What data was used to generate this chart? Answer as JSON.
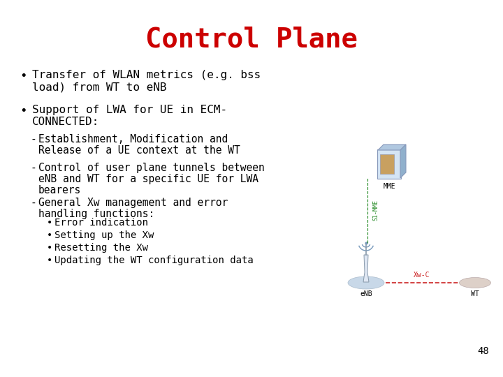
{
  "title": "Control Plane",
  "title_color": "#CC0000",
  "title_fontsize": 28,
  "bg_color": "#FFFFFF",
  "text_color": "#000000",
  "page_number": "48",
  "bullet1_line1": "Transfer of WLAN metrics (e.g. bss",
  "bullet1_line2": "load) from WT to eNB",
  "bullet2_line1": "Support of LWA for UE in ECM-",
  "bullet2_line2": "CONNECTED:",
  "sub1_line1": "Establishment, Modification and",
  "sub1_line2": "Release of a UE context at the WT",
  "sub2_line1": "Control of user plane tunnels between",
  "sub2_line2": "eNB and WT for a specific UE for LWA",
  "sub2_line3": "bearers",
  "sub3_line1": "General Xw management and error",
  "sub3_line2": "handling functions:",
  "subsub1": "Error indication",
  "subsub2": "Setting up the Xw",
  "subsub3": "Resetting the Xw",
  "subsub4": "Updating the WT configuration data",
  "body_fontsize": 11.5,
  "sub_fontsize": 10.5,
  "subsub_fontsize": 10,
  "font_family": "monospace",
  "diagram_mme_label": "MME",
  "diagram_enb_label": "eNB",
  "diagram_wt_label": "WT",
  "diagram_s1_label": "S1-MME",
  "diagram_xw_label": "Xw-C",
  "s1_color": "#228822",
  "xw_color": "#CC2222",
  "diagram_font_size": 7
}
